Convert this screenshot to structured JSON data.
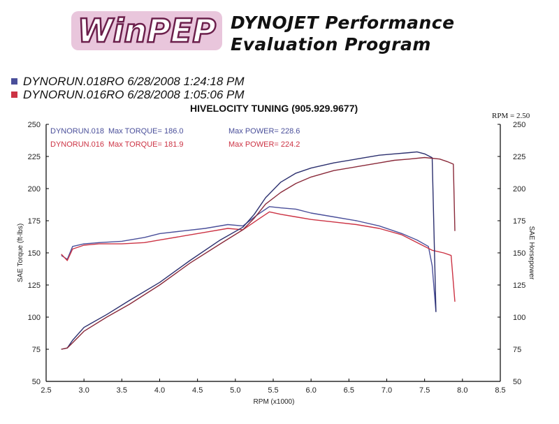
{
  "header": {
    "logo_text": "WinPEP",
    "title_line1": "DYNOJET Performance",
    "title_line2": "Evaluation Program"
  },
  "runs": [
    {
      "label": "DYNORUN.018RO  6/28/2008 1:24:18 PM",
      "color": "#4a4f9a"
    },
    {
      "label": "DYNORUN.016RO  6/28/2008 1:05:06 PM",
      "color": "#cc3344"
    }
  ],
  "chart_data": {
    "type": "line",
    "title": "HIVELOCITY TUNING (905.929.9677)",
    "note": "RPM = 2.50",
    "xlabel": "RPM (x1000)",
    "ylabel_left": "SAE Torque (ft-lbs)",
    "ylabel_right": "SAE Horsepower",
    "xlim": [
      2.5,
      8.5
    ],
    "ylim": [
      50,
      250
    ],
    "xticks": [
      "2.5",
      "3.0",
      "3.5",
      "4.0",
      "4.5",
      "5.0",
      "5.5",
      "6.0",
      "6.5",
      "7.0",
      "7.5",
      "8.0",
      "8.5"
    ],
    "yticks": [
      "50",
      "75",
      "100",
      "125",
      "150",
      "175",
      "200",
      "225",
      "250"
    ],
    "grid": false,
    "legend": [
      {
        "run": "DYNORUN.018",
        "torque_text": "Max TORQUE= 186.0",
        "power_text": "Max POWER= 228.6",
        "color": "#4a4f9a"
      },
      {
        "run": "DYNORUN.016",
        "torque_text": "Max TORQUE= 181.9",
        "power_text": "Max POWER= 224.2",
        "color": "#cc3344"
      }
    ],
    "series": [
      {
        "name": "DYNORUN.018",
        "measure": "torque",
        "color": "#4a4f9a",
        "x": [
          2.7,
          2.78,
          2.85,
          3.0,
          3.2,
          3.5,
          3.8,
          4.0,
          4.3,
          4.6,
          4.9,
          5.1,
          5.3,
          5.45,
          5.6,
          5.8,
          6.0,
          6.3,
          6.6,
          6.9,
          7.2,
          7.4,
          7.55,
          7.6,
          7.65
        ],
        "y": [
          148,
          145,
          155,
          157,
          158,
          159,
          162,
          165,
          167,
          169,
          172,
          171,
          180,
          186,
          185,
          184,
          181,
          178,
          175,
          171,
          165,
          160,
          155,
          140,
          104
        ]
      },
      {
        "name": "DYNORUN.016",
        "measure": "torque",
        "color": "#cc3344",
        "x": [
          2.7,
          2.78,
          2.85,
          3.0,
          3.2,
          3.5,
          3.8,
          4.0,
          4.3,
          4.6,
          4.9,
          5.1,
          5.3,
          5.45,
          5.6,
          5.8,
          6.0,
          6.3,
          6.6,
          6.9,
          7.2,
          7.4,
          7.6,
          7.75,
          7.85,
          7.9
        ],
        "y": [
          149,
          144,
          153,
          156,
          157,
          157,
          158,
          160,
          163,
          166,
          169,
          168,
          176,
          181.9,
          180,
          178,
          176,
          174,
          172,
          169,
          164,
          158,
          152,
          150,
          148,
          112
        ]
      },
      {
        "name": "DYNORUN.018",
        "measure": "power",
        "color": "#2b2f6e",
        "x": [
          2.7,
          2.78,
          2.85,
          3.0,
          3.3,
          3.6,
          4.0,
          4.4,
          4.8,
          5.1,
          5.25,
          5.4,
          5.6,
          5.8,
          6.0,
          6.3,
          6.6,
          6.9,
          7.1,
          7.3,
          7.4,
          7.5,
          7.6,
          7.65
        ],
        "y": [
          75,
          76,
          82,
          92,
          102,
          113,
          127,
          144,
          160,
          170,
          180,
          193,
          205,
          212,
          216,
          220,
          223,
          226,
          227,
          228,
          228.6,
          227,
          224,
          104
        ]
      },
      {
        "name": "DYNORUN.016",
        "measure": "power",
        "color": "#8a2a3a",
        "x": [
          2.7,
          2.78,
          2.85,
          3.0,
          3.3,
          3.6,
          4.0,
          4.4,
          4.8,
          5.1,
          5.25,
          5.4,
          5.6,
          5.8,
          6.0,
          6.3,
          6.6,
          6.9,
          7.1,
          7.3,
          7.5,
          7.7,
          7.8,
          7.88,
          7.9
        ],
        "y": [
          75,
          76,
          80,
          89,
          100,
          110,
          125,
          142,
          157,
          168,
          177,
          188,
          197,
          204,
          209,
          214,
          217,
          220,
          222,
          223,
          224.2,
          223,
          221,
          219,
          167
        ]
      }
    ]
  }
}
